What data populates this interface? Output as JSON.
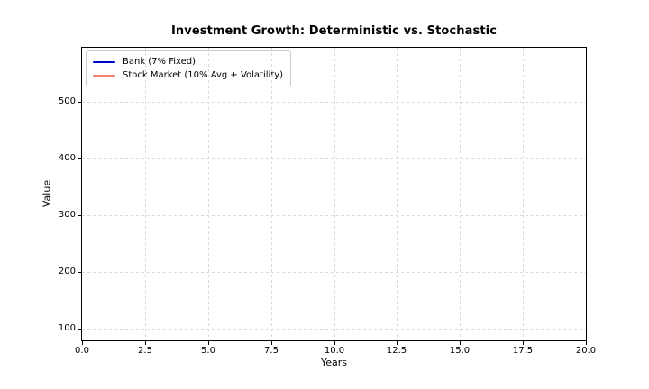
{
  "chart_data": {
    "type": "line",
    "title": "Investment Growth: Deterministic vs. Stochastic",
    "xlabel": "Years",
    "ylabel": "Value",
    "xlim": [
      0.0,
      20.0
    ],
    "ylim": [
      79.4,
      594.9
    ],
    "xticks": [
      0.0,
      2.5,
      5.0,
      7.5,
      10.0,
      12.5,
      15.0,
      17.5,
      20.0
    ],
    "xtick_labels": [
      "0.0",
      "2.5",
      "5.0",
      "7.5",
      "10.0",
      "12.5",
      "15.0",
      "17.5",
      "20.0"
    ],
    "yticks": [
      100,
      200,
      300,
      400,
      500
    ],
    "ytick_labels": [
      "100",
      "200",
      "300",
      "400",
      "500"
    ],
    "grid": true,
    "grid_linestyle": "dashed",
    "legend": {
      "position": "upper-left",
      "entries": [
        {
          "label": "Bank (7% Fixed)",
          "color": "#0000cd"
        },
        {
          "label": "Stock Market (10% Avg + Volatility)",
          "color": "#fa8072"
        }
      ]
    },
    "series": [
      {
        "name": "Bank (7% Fixed)",
        "color": "#0000cd",
        "x": [],
        "values": []
      },
      {
        "name": "Stock Market (10% Avg + Volatility)",
        "color": "#fa8072",
        "x": [],
        "values": []
      }
    ]
  },
  "colors": {
    "background": "#ffffff",
    "grid": "#d9d9d9",
    "spine": "#000000",
    "text": "#000000",
    "legend_border": "#cccccc"
  }
}
